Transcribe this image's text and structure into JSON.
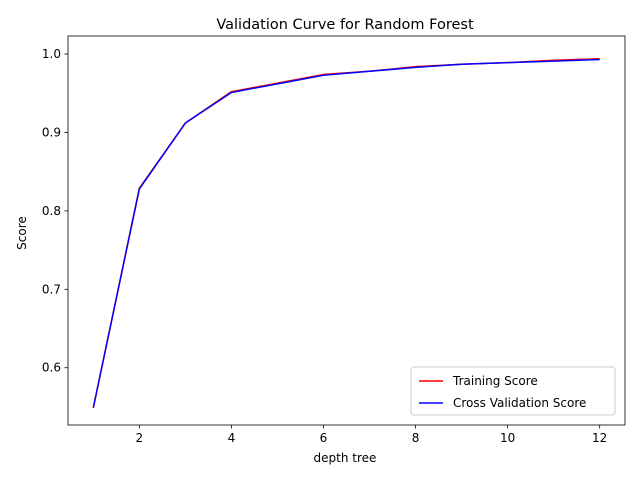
{
  "chart_data": {
    "type": "line",
    "title": "Validation Curve for Random Forest",
    "xlabel": "depth tree",
    "ylabel": "Score",
    "xlim": [
      0.45,
      12.55
    ],
    "ylim": [
      0.527,
      1.023
    ],
    "xticks": [
      2,
      4,
      6,
      8,
      10,
      12
    ],
    "yticks": [
      0.6,
      0.7,
      0.8,
      0.9,
      1.0
    ],
    "xtick_labels": [
      "2",
      "4",
      "6",
      "8",
      "10",
      "12"
    ],
    "ytick_labels": [
      "0.6",
      "0.7",
      "0.8",
      "0.9",
      "1.0"
    ],
    "grid": false,
    "legend_position": "lower-right",
    "x": [
      1,
      2,
      3,
      4,
      5,
      6,
      7,
      8,
      9,
      10,
      11,
      12
    ],
    "series": [
      {
        "name": "Training Score",
        "color": "#ff0000",
        "values": [
          0.549,
          0.829,
          0.912,
          0.952,
          0.963,
          0.974,
          0.978,
          0.984,
          0.987,
          0.989,
          0.992,
          0.994
        ]
      },
      {
        "name": "Cross Validation Score",
        "color": "#0000ff",
        "values": [
          0.549,
          0.828,
          0.912,
          0.951,
          0.962,
          0.973,
          0.978,
          0.983,
          0.987,
          0.989,
          0.991,
          0.993
        ]
      }
    ]
  }
}
